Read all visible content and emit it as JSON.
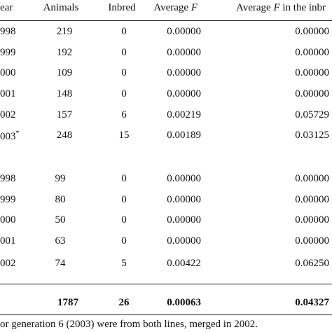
{
  "header": [
    [
      "ear"
    ],
    [
      "Animals"
    ],
    [
      "Inbred"
    ],
    [
      "Average ",
      "F"
    ],
    [
      "Average ",
      "F",
      " in the inbr"
    ]
  ],
  "groups": [
    [
      {
        "year": "998",
        "animals": "219",
        "inbred": "0",
        "avg_f": "0.00000",
        "avg_f_inbred": "0.00000"
      },
      {
        "year": "999",
        "animals": "192",
        "inbred": "0",
        "avg_f": "0.00000",
        "avg_f_inbred": "0.00000"
      },
      {
        "year": "000",
        "animals": "109",
        "inbred": "0",
        "avg_f": "0.00000",
        "avg_f_inbred": "0.00000"
      },
      {
        "year": "001",
        "animals": "148",
        "inbred": "0",
        "avg_f": "0.00000",
        "avg_f_inbred": "0.00000"
      },
      {
        "year": "002",
        "animals": "157",
        "inbred": "6",
        "avg_f": "0.00219",
        "avg_f_inbred": "0.05729"
      },
      {
        "year": "003",
        "mark": "*",
        "animals": "248",
        "inbred": "15",
        "avg_f": "0.00189",
        "avg_f_inbred": "0.03125"
      }
    ],
    [
      {
        "year": "998",
        "animals": "99",
        "inbred": "0",
        "avg_f": "0.00000",
        "avg_f_inbred": "0.00000"
      },
      {
        "year": "999",
        "animals": "80",
        "inbred": "0",
        "avg_f": "0.00000",
        "avg_f_inbred": "0.00000"
      },
      {
        "year": "000",
        "animals": "50",
        "inbred": "0",
        "avg_f": "0.00000",
        "avg_f_inbred": "0.00000"
      },
      {
        "year": "001",
        "animals": "63",
        "inbred": "0",
        "avg_f": "0.00000",
        "avg_f_inbred": "0.00000"
      },
      {
        "year": "002",
        "animals": "74",
        "inbred": "5",
        "avg_f": "0.00422",
        "avg_f_inbred": "0.06250"
      }
    ]
  ],
  "total": {
    "animals": "1787",
    "inbred": "26",
    "avg_f": "0.00063",
    "avg_f_inbred": "0.04327"
  },
  "footnote": "or generation 6 (2003) were from both lines, merged in 2002."
}
